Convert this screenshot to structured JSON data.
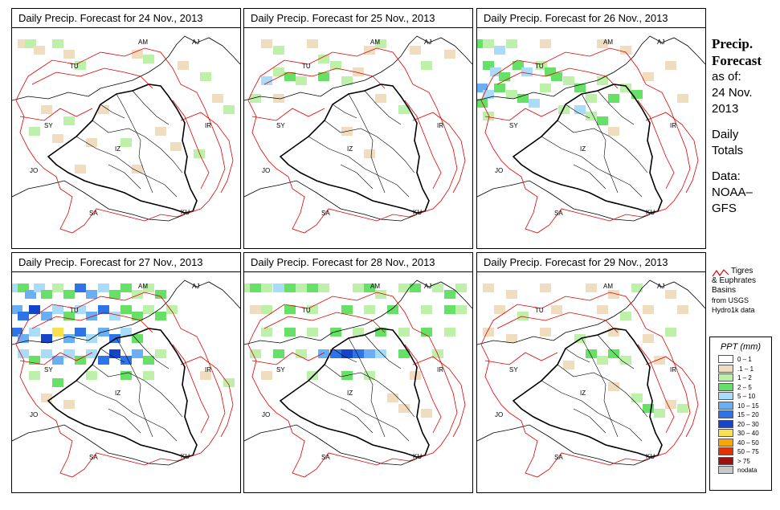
{
  "panels": [
    {
      "title": "Daily Precip. Forecast for  24 Nov., 2013",
      "cells": [
        [
          0.05,
          0.05,
          1
        ],
        [
          0.08,
          0.05,
          2
        ],
        [
          0.12,
          0.08,
          1
        ],
        [
          0.2,
          0.05,
          2
        ],
        [
          0.25,
          0.1,
          1
        ],
        [
          0.3,
          0.15,
          2
        ],
        [
          0.55,
          0.1,
          1
        ],
        [
          0.6,
          0.12,
          2
        ],
        [
          0.75,
          0.15,
          1
        ],
        [
          0.85,
          0.2,
          2
        ],
        [
          0.9,
          0.3,
          1
        ],
        [
          0.95,
          0.35,
          2
        ],
        [
          0.15,
          0.35,
          1
        ],
        [
          0.25,
          0.4,
          2
        ],
        [
          0.4,
          0.35,
          1
        ],
        [
          0.1,
          0.45,
          2
        ],
        [
          0.2,
          0.48,
          1
        ],
        [
          0.35,
          0.5,
          1
        ],
        [
          0.5,
          0.5,
          2
        ],
        [
          0.65,
          0.45,
          1
        ],
        [
          0.72,
          0.52,
          1
        ],
        [
          0.82,
          0.55,
          2
        ],
        [
          0.55,
          0.62,
          1
        ],
        [
          0.3,
          0.62,
          1
        ]
      ]
    },
    {
      "title": "Daily Precip. Forecast for  25 Nov., 2013",
      "cells": [
        [
          0.1,
          0.05,
          1
        ],
        [
          0.15,
          0.08,
          2
        ],
        [
          0.3,
          0.05,
          1
        ],
        [
          0.35,
          0.12,
          2
        ],
        [
          0.4,
          0.15,
          2
        ],
        [
          0.15,
          0.18,
          2
        ],
        [
          0.2,
          0.2,
          3
        ],
        [
          0.25,
          0.22,
          2
        ],
        [
          0.1,
          0.22,
          4
        ],
        [
          0.35,
          0.2,
          3
        ],
        [
          0.45,
          0.22,
          2
        ],
        [
          0.5,
          0.18,
          1
        ],
        [
          0.55,
          0.08,
          1
        ],
        [
          0.6,
          0.05,
          2
        ],
        [
          0.75,
          0.08,
          1
        ],
        [
          0.8,
          0.15,
          2
        ],
        [
          0.9,
          0.1,
          1
        ],
        [
          0.05,
          0.3,
          2
        ],
        [
          0.15,
          0.3,
          1
        ],
        [
          0.6,
          0.3,
          1
        ],
        [
          0.7,
          0.35,
          2
        ],
        [
          0.45,
          0.45,
          1
        ],
        [
          0.55,
          0.55,
          1
        ]
      ]
    },
    {
      "title": "Daily Precip. Forecast for  26 Nov., 2013",
      "cells": [
        [
          0.02,
          0.05,
          3
        ],
        [
          0.05,
          0.05,
          2
        ],
        [
          0.1,
          0.08,
          4
        ],
        [
          0.15,
          0.05,
          2
        ],
        [
          0.3,
          0.05,
          1
        ],
        [
          0.55,
          0.05,
          1
        ],
        [
          0.65,
          0.08,
          1
        ],
        [
          0.05,
          0.15,
          3
        ],
        [
          0.08,
          0.18,
          4
        ],
        [
          0.12,
          0.2,
          3
        ],
        [
          0.18,
          0.15,
          3
        ],
        [
          0.22,
          0.18,
          4
        ],
        [
          0.28,
          0.15,
          2
        ],
        [
          0.32,
          0.18,
          3
        ],
        [
          0.02,
          0.25,
          5
        ],
        [
          0.05,
          0.28,
          4
        ],
        [
          0.1,
          0.25,
          3
        ],
        [
          0.15,
          0.28,
          2
        ],
        [
          0.2,
          0.3,
          3
        ],
        [
          0.25,
          0.32,
          4
        ],
        [
          0.3,
          0.25,
          2
        ],
        [
          0.35,
          0.2,
          3
        ],
        [
          0.4,
          0.22,
          2
        ],
        [
          0.45,
          0.25,
          3
        ],
        [
          0.5,
          0.3,
          2
        ],
        [
          0.55,
          0.22,
          2
        ],
        [
          0.6,
          0.3,
          3
        ],
        [
          0.65,
          0.25,
          2
        ],
        [
          0.7,
          0.28,
          3
        ],
        [
          0.38,
          0.35,
          2
        ],
        [
          0.45,
          0.35,
          4
        ],
        [
          0.5,
          0.38,
          2
        ],
        [
          0.55,
          0.4,
          3
        ],
        [
          0.05,
          0.38,
          2
        ],
        [
          0.02,
          0.32,
          3
        ],
        [
          0.75,
          0.2,
          1
        ],
        [
          0.85,
          0.15,
          1
        ],
        [
          0.9,
          0.3,
          1
        ],
        [
          0.6,
          0.45,
          1
        ]
      ]
    },
    {
      "title": "Daily Precip. Forecast for  27 Nov., 2013",
      "cells": [
        [
          0.02,
          0.05,
          4
        ],
        [
          0.05,
          0.05,
          3
        ],
        [
          0.08,
          0.08,
          5
        ],
        [
          0.12,
          0.05,
          4
        ],
        [
          0.15,
          0.08,
          3
        ],
        [
          0.2,
          0.05,
          2
        ],
        [
          0.25,
          0.08,
          3
        ],
        [
          0.3,
          0.05,
          6
        ],
        [
          0.35,
          0.08,
          5
        ],
        [
          0.4,
          0.05,
          4
        ],
        [
          0.45,
          0.08,
          3
        ],
        [
          0.5,
          0.05,
          3
        ],
        [
          0.55,
          0.08,
          2
        ],
        [
          0.6,
          0.05,
          2
        ],
        [
          0.65,
          0.08,
          3
        ],
        [
          0.02,
          0.15,
          5
        ],
        [
          0.05,
          0.18,
          6
        ],
        [
          0.1,
          0.15,
          7
        ],
        [
          0.15,
          0.18,
          5
        ],
        [
          0.2,
          0.15,
          4
        ],
        [
          0.25,
          0.18,
          3
        ],
        [
          0.3,
          0.15,
          4
        ],
        [
          0.35,
          0.18,
          5
        ],
        [
          0.4,
          0.15,
          6
        ],
        [
          0.45,
          0.18,
          4
        ],
        [
          0.5,
          0.15,
          3
        ],
        [
          0.55,
          0.18,
          3
        ],
        [
          0.6,
          0.15,
          2
        ],
        [
          0.65,
          0.18,
          3
        ],
        [
          0.7,
          0.15,
          2
        ],
        [
          0.02,
          0.25,
          6
        ],
        [
          0.05,
          0.28,
          5
        ],
        [
          0.1,
          0.25,
          4
        ],
        [
          0.15,
          0.28,
          7
        ],
        [
          0.2,
          0.25,
          8
        ],
        [
          0.25,
          0.28,
          5
        ],
        [
          0.3,
          0.25,
          6
        ],
        [
          0.35,
          0.28,
          4
        ],
        [
          0.4,
          0.25,
          5
        ],
        [
          0.45,
          0.28,
          6
        ],
        [
          0.5,
          0.25,
          4
        ],
        [
          0.55,
          0.28,
          3
        ],
        [
          0.05,
          0.35,
          4
        ],
        [
          0.1,
          0.38,
          3
        ],
        [
          0.15,
          0.35,
          4
        ],
        [
          0.2,
          0.38,
          5
        ],
        [
          0.25,
          0.35,
          4
        ],
        [
          0.3,
          0.38,
          3
        ],
        [
          0.35,
          0.35,
          4
        ],
        [
          0.4,
          0.38,
          6
        ],
        [
          0.45,
          0.35,
          7
        ],
        [
          0.5,
          0.38,
          6
        ],
        [
          0.55,
          0.35,
          5
        ],
        [
          0.6,
          0.38,
          3
        ],
        [
          0.65,
          0.35,
          2
        ],
        [
          0.1,
          0.45,
          2
        ],
        [
          0.2,
          0.48,
          3
        ],
        [
          0.35,
          0.45,
          2
        ],
        [
          0.5,
          0.45,
          3
        ],
        [
          0.6,
          0.45,
          2
        ],
        [
          0.15,
          0.55,
          1
        ],
        [
          0.25,
          0.58,
          1
        ],
        [
          0.85,
          0.45,
          1
        ],
        [
          0.95,
          0.48,
          2
        ]
      ]
    },
    {
      "title": "Daily Precip. Forecast for  28 Nov., 2013",
      "cells": [
        [
          0.02,
          0.05,
          2
        ],
        [
          0.05,
          0.05,
          3
        ],
        [
          0.1,
          0.05,
          2
        ],
        [
          0.15,
          0.05,
          4
        ],
        [
          0.2,
          0.05,
          3
        ],
        [
          0.25,
          0.05,
          2
        ],
        [
          0.3,
          0.05,
          3
        ],
        [
          0.35,
          0.05,
          2
        ],
        [
          0.5,
          0.05,
          2
        ],
        [
          0.55,
          0.05,
          3
        ],
        [
          0.6,
          0.08,
          2
        ],
        [
          0.7,
          0.05,
          2
        ],
        [
          0.75,
          0.05,
          3
        ],
        [
          0.85,
          0.05,
          2
        ],
        [
          0.9,
          0.08,
          3
        ],
        [
          0.95,
          0.05,
          2
        ],
        [
          0.05,
          0.15,
          1
        ],
        [
          0.1,
          0.15,
          2
        ],
        [
          0.2,
          0.15,
          3
        ],
        [
          0.3,
          0.15,
          2
        ],
        [
          0.45,
          0.15,
          3
        ],
        [
          0.55,
          0.15,
          2
        ],
        [
          0.65,
          0.15,
          3
        ],
        [
          0.8,
          0.15,
          2
        ],
        [
          0.9,
          0.15,
          3
        ],
        [
          0.95,
          0.15,
          2
        ],
        [
          0.1,
          0.25,
          2
        ],
        [
          0.2,
          0.25,
          3
        ],
        [
          0.3,
          0.25,
          2
        ],
        [
          0.4,
          0.25,
          3
        ],
        [
          0.5,
          0.25,
          2
        ],
        [
          0.6,
          0.25,
          3
        ],
        [
          0.7,
          0.25,
          2
        ],
        [
          0.8,
          0.25,
          3
        ],
        [
          0.9,
          0.25,
          2
        ],
        [
          0.05,
          0.35,
          2
        ],
        [
          0.15,
          0.35,
          3
        ],
        [
          0.25,
          0.35,
          2
        ],
        [
          0.35,
          0.35,
          5
        ],
        [
          0.4,
          0.35,
          6
        ],
        [
          0.45,
          0.35,
          7
        ],
        [
          0.5,
          0.35,
          6
        ],
        [
          0.55,
          0.35,
          5
        ],
        [
          0.6,
          0.35,
          4
        ],
        [
          0.7,
          0.35,
          3
        ],
        [
          0.85,
          0.35,
          2
        ],
        [
          0.1,
          0.45,
          1
        ],
        [
          0.3,
          0.45,
          2
        ],
        [
          0.45,
          0.45,
          3
        ],
        [
          0.55,
          0.45,
          2
        ],
        [
          0.75,
          0.45,
          1
        ],
        [
          0.65,
          0.55,
          1
        ],
        [
          0.7,
          0.6,
          1
        ],
        [
          0.8,
          0.62,
          1
        ]
      ]
    },
    {
      "title": "Daily Precip. Forecast for  29 Nov., 2013",
      "cells": [
        [
          0.05,
          0.05,
          1
        ],
        [
          0.15,
          0.08,
          1
        ],
        [
          0.3,
          0.05,
          1
        ],
        [
          0.5,
          0.05,
          1
        ],
        [
          0.6,
          0.08,
          1
        ],
        [
          0.7,
          0.05,
          2
        ],
        [
          0.85,
          0.08,
          1
        ],
        [
          0.1,
          0.15,
          1
        ],
        [
          0.2,
          0.18,
          2
        ],
        [
          0.35,
          0.15,
          1
        ],
        [
          0.55,
          0.15,
          1
        ],
        [
          0.65,
          0.18,
          2
        ],
        [
          0.75,
          0.15,
          1
        ],
        [
          0.9,
          0.15,
          1
        ],
        [
          0.05,
          0.25,
          1
        ],
        [
          0.15,
          0.28,
          1
        ],
        [
          0.3,
          0.25,
          1
        ],
        [
          0.45,
          0.28,
          2
        ],
        [
          0.6,
          0.25,
          1
        ],
        [
          0.75,
          0.28,
          1
        ],
        [
          0.85,
          0.25,
          2
        ],
        [
          0.5,
          0.35,
          3
        ],
        [
          0.55,
          0.38,
          2
        ],
        [
          0.6,
          0.35,
          3
        ],
        [
          0.65,
          0.38,
          2
        ],
        [
          0.4,
          0.4,
          1
        ],
        [
          0.8,
          0.38,
          1
        ],
        [
          0.6,
          0.5,
          1
        ],
        [
          0.7,
          0.55,
          2
        ],
        [
          0.75,
          0.6,
          3
        ],
        [
          0.8,
          0.62,
          2
        ],
        [
          0.85,
          0.58,
          1
        ],
        [
          0.9,
          0.6,
          2
        ]
      ]
    }
  ],
  "labels": {
    "tu": "TU",
    "am": "AM",
    "aj": "AJ",
    "sy": "SY",
    "ir": "IR",
    "iz": "IZ",
    "jo": "JO",
    "sa": "SA",
    "ku": "KU"
  },
  "sidebar": {
    "title_line1": "Precip.",
    "title_line2": "Forecast",
    "as_of": "as of:",
    "date_line1": "24 Nov.",
    "date_line2": "2013",
    "daily_line1": "Daily",
    "daily_line2": "Totals",
    "data_line1": "Data:",
    "data_line2": "NOAA–",
    "data_line3": "GFS"
  },
  "basin_legend": {
    "line1": "Tigres",
    "line2": "& Euphrates",
    "line3": "Basins",
    "line4": "from USGS",
    "line5": "Hydro1k data",
    "line_color": "#dd0000"
  },
  "legend": {
    "title": "PPT (mm)",
    "items": [
      {
        "label": "0 – 1",
        "color": "#ffffff"
      },
      {
        "label": ".1 – 1",
        "color": "#f0dcbe"
      },
      {
        "label": "1 – 2",
        "color": "#bdf0a8"
      },
      {
        "label": "2 – 5",
        "color": "#66e066"
      },
      {
        "label": "5 – 10",
        "color": "#a8dcf8"
      },
      {
        "label": "10 – 15",
        "color": "#6aaef6"
      },
      {
        "label": "15 – 20",
        "color": "#2c74e8"
      },
      {
        "label": "20 – 30",
        "color": "#1444c8"
      },
      {
        "label": "30 – 40",
        "color": "#f8e050"
      },
      {
        "label": "40 – 50",
        "color": "#f8a800"
      },
      {
        "label": "50 – 75",
        "color": "#e83000"
      },
      {
        "label": "> 75",
        "color": "#a01010"
      },
      {
        "label": "nodata",
        "color": "#c8c8c8"
      }
    ]
  }
}
